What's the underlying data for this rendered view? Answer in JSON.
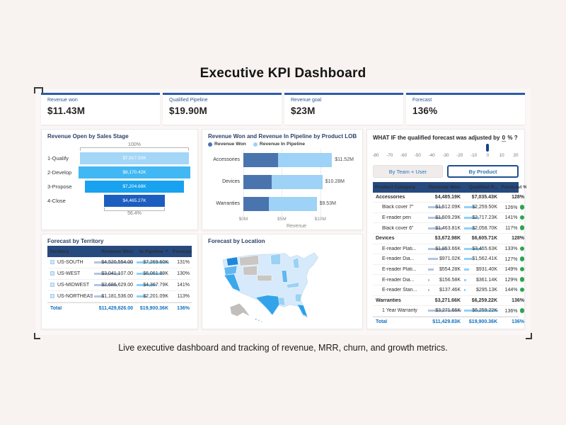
{
  "page": {
    "title": "Executive KPI Dashboard",
    "caption": "Live executive dashboard and tracking of revenue, MRR, churn, and growth metrics."
  },
  "colors": {
    "kpi_top_border": "#2b5ca8",
    "table_header_bg": "#26497e",
    "total_text": "#1070c0",
    "status_green": "#2EA44F",
    "won_databar": "#b1c4e0",
    "pipeline_databar": "#8ed1f8",
    "won_series": "#4a74ae",
    "pipeline_series": "#9ed2f6"
  },
  "kpi_cards": [
    {
      "label": "Revenue won",
      "value": "$11.43M"
    },
    {
      "label": "Qualified Pipeline",
      "value": "$19.90M"
    },
    {
      "label": "Revenue goal",
      "value": "$23M"
    },
    {
      "label": "Forecast",
      "value": "136%"
    }
  ],
  "chart_data": [
    {
      "type": "funnel",
      "title": "Revenue Open by Sales Stage",
      "categories": [
        "1-Qualify",
        "2-Develop",
        "3-Propose",
        "4-Close"
      ],
      "values_k": [
        7917.5,
        8170.42,
        7204.68,
        4465.27
      ],
      "value_labels": [
        "$7,917.50K",
        "$8,170.42K",
        "$7,204.68K",
        "$4,465.27K"
      ],
      "top_label": "100%",
      "bottom_label": "56.4%",
      "bar_colors": [
        "#a3d6f7",
        "#41b8f3",
        "#18a2ef",
        "#1b5ec0"
      ]
    },
    {
      "type": "bar",
      "title": "Revenue Won and Revenue In Pipeline by Product LOB",
      "stacked": true,
      "categories": [
        "Accessories",
        "Devices",
        "Warranties"
      ],
      "series": [
        {
          "name": "Revenue Won",
          "values_m": [
            4.49,
            3.67,
            3.27
          ],
          "color": "#4a74ae"
        },
        {
          "name": "Revenue In Pipeline",
          "values_m": [
            7.03,
            6.61,
            6.26
          ],
          "color": "#9ed2f6"
        }
      ],
      "total_labels": [
        "$11.52M",
        "$10.28M",
        "$9.53M"
      ],
      "x_ticks": [
        {
          "label": "$0M",
          "value_m": 0
        },
        {
          "label": "$5M",
          "value_m": 5
        },
        {
          "label": "$10M",
          "value_m": 10
        }
      ],
      "xlabel": "Revenue",
      "xmax_m": 13.8
    },
    {
      "type": "map",
      "title": "Forecast by Location",
      "regions": [
        {
          "name": "Washington",
          "shade": "dark-blue"
        },
        {
          "name": "California",
          "shade": "strong-blue"
        },
        {
          "name": "Texas",
          "shade": "strong-blue"
        },
        {
          "name": "Florida",
          "shade": "strong-blue"
        },
        {
          "name": "Oregon",
          "shade": "medium-blue"
        },
        {
          "name": "Illinois",
          "shade": "medium-blue"
        },
        {
          "name": "Minnesota",
          "shade": "light-medium-blue"
        },
        {
          "name": "Michigan",
          "shade": "light-medium-blue"
        },
        {
          "name": "Georgia",
          "shade": "light-medium-blue"
        },
        {
          "name": "Louisiana",
          "shade": "light-medium-blue"
        },
        {
          "name": "Tennessee",
          "shade": "light-medium-blue"
        },
        {
          "name": "Montana",
          "shade": "gray"
        },
        {
          "name": "Wyoming",
          "shade": "gray"
        },
        {
          "name": "Nebraska",
          "shade": "gray"
        },
        {
          "name": "Alaska",
          "shade": "gray"
        },
        {
          "name": "Other states",
          "shade": "base-light-blue"
        }
      ]
    }
  ],
  "map_colors": {
    "base": "#d6eafb",
    "wa": "#1d87dd",
    "ca": "#3ba7ec",
    "tx": "#33a4ea",
    "fl": "#2d9fe8",
    "or": "#62b7ef",
    "il": "#62b7ef",
    "mn": "#9bd1f4",
    "mi": "#9bd1f4",
    "ga": "#9bd1f4",
    "la": "#9bd1f4",
    "tn": "#9bd1f4",
    "mt": "#c9c6c3",
    "wy": "#c9c6c3",
    "ne": "#c9c6c3",
    "ak": "#c1bebb",
    "hi": "#9bd1f4",
    "stroke": "#ffffff",
    "outline_stroke": "#b6d6ee"
  },
  "whatif": {
    "question": "WHAT IF the qualified forecast was adjusted by",
    "value": "0",
    "unit": "% ?",
    "tick_labels": [
      "-80",
      "-70",
      "-60",
      "-50",
      "-40",
      "-30",
      "-20",
      "-10",
      "0",
      "10",
      "20"
    ],
    "selected_index": 8,
    "buttons": [
      {
        "label": "By Team + User",
        "selected": false
      },
      {
        "label": "By Product",
        "selected": true
      }
    ]
  },
  "product_table": {
    "columns": [
      "Product Category",
      "Revenue Won",
      "Qualified P...",
      "Forecast %"
    ],
    "sorted_column": "Revenue Won",
    "rows": [
      {
        "name": "Accessories",
        "won": "$4,485.19K",
        "qualified": "$7,035.43K",
        "forecast": "128%",
        "type": "subtotal"
      },
      {
        "name": "Black cover 7\"",
        "won": "$1,512.09K",
        "qualified": "$2,259.50K",
        "forecast": "126%",
        "type": "item"
      },
      {
        "name": "E-reader pen",
        "won": "$1,509.29K",
        "qualified": "$2,717.23K",
        "forecast": "141%",
        "type": "item"
      },
      {
        "name": "Black cover 6\"",
        "won": "$1,463.81K",
        "qualified": "$2,058.70K",
        "forecast": "117%",
        "type": "item"
      },
      {
        "name": "Devices",
        "won": "$3,672.98K",
        "qualified": "$6,605.71K",
        "forecast": "128%",
        "type": "subtotal"
      },
      {
        "name": "E-reader Plati...",
        "won": "$1,853.66K",
        "qualified": "$3,455.63K",
        "forecast": "133%",
        "type": "item"
      },
      {
        "name": "E-reader Dia...",
        "won": "$971.02K",
        "qualified": "$1,562.41K",
        "forecast": "127%",
        "type": "item"
      },
      {
        "name": "E-reader Plati...",
        "won": "$554.28K",
        "qualified": "$931.40K",
        "forecast": "149%",
        "type": "item"
      },
      {
        "name": "E-reader Dia...",
        "won": "$156.58K",
        "qualified": "$361.14K",
        "forecast": "129%",
        "type": "item"
      },
      {
        "name": "E-reader Stan...",
        "won": "$137.46K",
        "qualified": "$295.13K",
        "forecast": "144%",
        "type": "item"
      },
      {
        "name": "Warranties",
        "won": "$3,271.66K",
        "qualified": "$6,259.22K",
        "forecast": "136%",
        "type": "subtotal"
      },
      {
        "name": "1 Year Warranty",
        "won": "$3,271.66K",
        "qualified": "$6,259.22K",
        "forecast": "136%",
        "type": "item"
      },
      {
        "name": "Total",
        "won": "$11,429.83K",
        "qualified": "$19,900.36K",
        "forecast": "136%",
        "type": "total"
      }
    ]
  },
  "territory_table": {
    "title": "Forecast by Territory",
    "columns": [
      "Territory",
      "Revenue Won",
      "In Pipeline",
      "Forecast %"
    ],
    "sorted_column": "In Pipeline",
    "rows": [
      {
        "name": "US-SOUTH",
        "won": "$4,520,554.00",
        "pipeline": "$7,269.60K",
        "forecast": "131%",
        "type": "item"
      },
      {
        "name": "US-WEST",
        "won": "$3,041,107.00",
        "pipeline": "$6,061.89K",
        "forecast": "130%",
        "type": "item"
      },
      {
        "name": "US-MIDWEST",
        "won": "$2,686,629.00",
        "pipeline": "$4,367.79K",
        "forecast": "141%",
        "type": "item"
      },
      {
        "name": "US-NORTHEAST",
        "won": "$1,181,536.00",
        "pipeline": "$2,201.09K",
        "forecast": "113%",
        "type": "item"
      },
      {
        "name": "Total",
        "won": "$11,429,826.00",
        "pipeline": "$19,900.36K",
        "forecast": "136%",
        "type": "total"
      }
    ]
  }
}
